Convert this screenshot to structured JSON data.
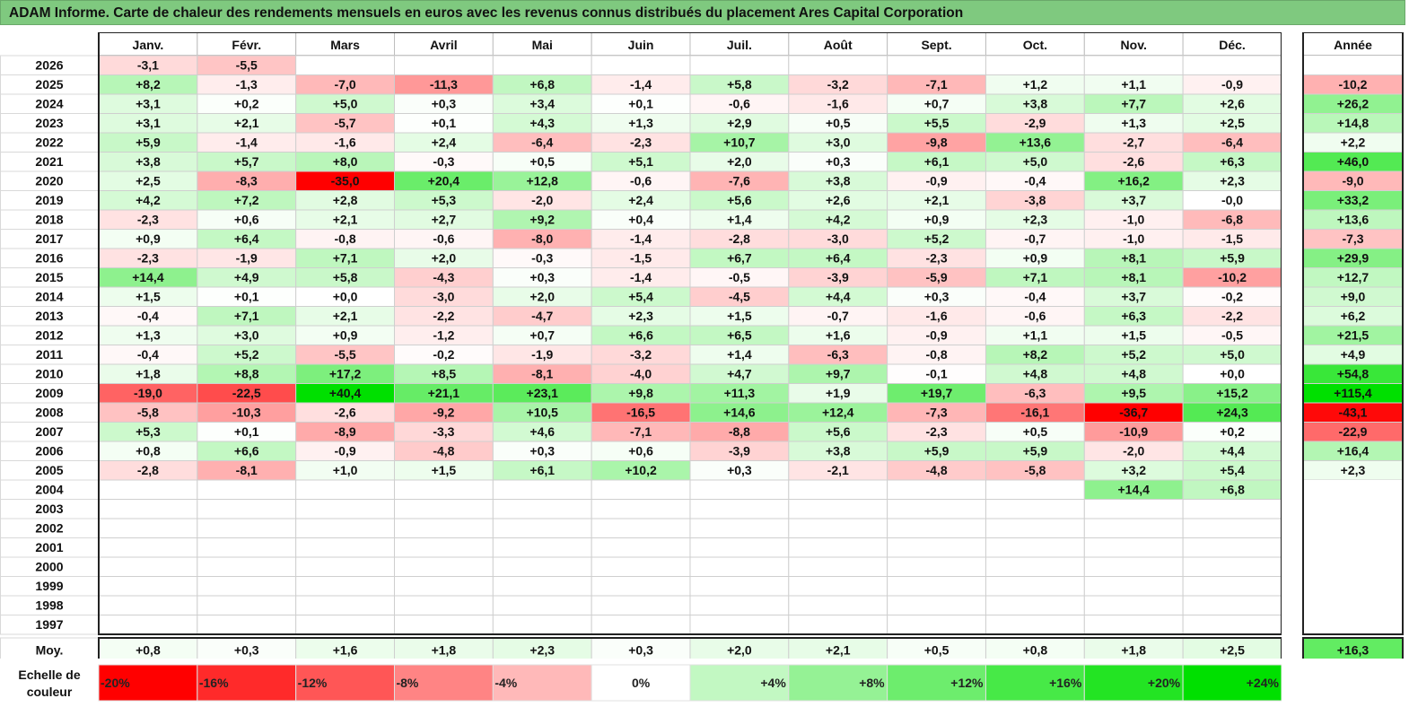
{
  "title": "ADAM Informe. Carte de chaleur des rendements mensuels en euros avec les revenus connus distribués du placement Ares Capital Corporation",
  "colors": {
    "title_bg": "#7fc97f",
    "max_red": "#ff0000",
    "max_green": "#00e000",
    "neutral": "#ffffff"
  },
  "chart_data": {
    "type": "heatmap",
    "columns": [
      "Janv.",
      "Févr.",
      "Mars",
      "Avril",
      "Mai",
      "Juin",
      "Juil.",
      "Août",
      "Sept.",
      "Oct.",
      "Nov.",
      "Déc."
    ],
    "annual_header": "Année",
    "rows": [
      {
        "year": "2026",
        "months": [
          "-3,1",
          "-5,5",
          "",
          "",
          "",
          "",
          "",
          "",
          "",
          "",
          "",
          ""
        ],
        "annual": ""
      },
      {
        "year": "2025",
        "months": [
          "+8,2",
          "-1,3",
          "-7,0",
          "-11,3",
          "+6,8",
          "-1,4",
          "+5,8",
          "-3,2",
          "-7,1",
          "+1,2",
          "+1,1",
          "-0,9"
        ],
        "annual": "-10,2"
      },
      {
        "year": "2024",
        "months": [
          "+3,1",
          "+0,2",
          "+5,0",
          "+0,3",
          "+3,4",
          "+0,1",
          "-0,6",
          "-1,6",
          "+0,7",
          "+3,8",
          "+7,7",
          "+2,6"
        ],
        "annual": "+26,2"
      },
      {
        "year": "2023",
        "months": [
          "+3,1",
          "+2,1",
          "-5,7",
          "+0,1",
          "+4,3",
          "+1,3",
          "+2,9",
          "+0,5",
          "+5,5",
          "-2,9",
          "+1,3",
          "+2,5"
        ],
        "annual": "+14,8"
      },
      {
        "year": "2022",
        "months": [
          "+5,9",
          "-1,4",
          "-1,6",
          "+2,4",
          "-6,4",
          "-2,3",
          "+10,7",
          "+3,0",
          "-9,8",
          "+13,6",
          "-2,7",
          "-6,4"
        ],
        "annual": "+2,2"
      },
      {
        "year": "2021",
        "months": [
          "+3,8",
          "+5,7",
          "+8,0",
          "-0,3",
          "+0,5",
          "+5,1",
          "+2,0",
          "+0,3",
          "+6,1",
          "+5,0",
          "-2,6",
          "+6,3"
        ],
        "annual": "+46,0"
      },
      {
        "year": "2020",
        "months": [
          "+2,5",
          "-8,3",
          "-35,0",
          "+20,4",
          "+12,8",
          "-0,6",
          "-7,6",
          "+3,8",
          "-0,9",
          "-0,4",
          "+16,2",
          "+2,3"
        ],
        "annual": "-9,0"
      },
      {
        "year": "2019",
        "months": [
          "+4,2",
          "+7,2",
          "+2,8",
          "+5,3",
          "-2,0",
          "+2,4",
          "+5,6",
          "+2,6",
          "+2,1",
          "-3,8",
          "+3,7",
          "-0,0"
        ],
        "annual": "+33,2"
      },
      {
        "year": "2018",
        "months": [
          "-2,3",
          "+0,6",
          "+2,1",
          "+2,7",
          "+9,2",
          "+0,4",
          "+1,4",
          "+4,2",
          "+0,9",
          "+2,3",
          "-1,0",
          "-6,8"
        ],
        "annual": "+13,6"
      },
      {
        "year": "2017",
        "months": [
          "+0,9",
          "+6,4",
          "-0,8",
          "-0,6",
          "-8,0",
          "-1,4",
          "-2,8",
          "-3,0",
          "+5,2",
          "-0,7",
          "-1,0",
          "-1,5"
        ],
        "annual": "-7,3"
      },
      {
        "year": "2016",
        "months": [
          "-2,3",
          "-1,9",
          "+7,1",
          "+2,0",
          "-0,3",
          "-1,5",
          "+6,7",
          "+6,4",
          "-2,3",
          "+0,9",
          "+8,1",
          "+5,9"
        ],
        "annual": "+29,9"
      },
      {
        "year": "2015",
        "months": [
          "+14,4",
          "+4,9",
          "+5,8",
          "-4,3",
          "+0,3",
          "-1,4",
          "-0,5",
          "-3,9",
          "-5,9",
          "+7,1",
          "+8,1",
          "-10,2"
        ],
        "annual": "+12,7"
      },
      {
        "year": "2014",
        "months": [
          "+1,5",
          "+0,1",
          "+0,0",
          "-3,0",
          "+2,0",
          "+5,4",
          "-4,5",
          "+4,4",
          "+0,3",
          "-0,4",
          "+3,7",
          "-0,2"
        ],
        "annual": "+9,0"
      },
      {
        "year": "2013",
        "months": [
          "-0,4",
          "+7,1",
          "+2,1",
          "-2,2",
          "-4,7",
          "+2,3",
          "+1,5",
          "-0,7",
          "-1,6",
          "-0,6",
          "+6,3",
          "-2,2"
        ],
        "annual": "+6,2"
      },
      {
        "year": "2012",
        "months": [
          "+1,3",
          "+3,0",
          "+0,9",
          "-1,2",
          "+0,7",
          "+6,6",
          "+6,5",
          "+1,6",
          "-0,9",
          "+1,1",
          "+1,5",
          "-0,5"
        ],
        "annual": "+21,5"
      },
      {
        "year": "2011",
        "months": [
          "-0,4",
          "+5,2",
          "-5,5",
          "-0,2",
          "-1,9",
          "-3,2",
          "+1,4",
          "-6,3",
          "-0,8",
          "+8,2",
          "+5,2",
          "+5,0"
        ],
        "annual": "+4,9"
      },
      {
        "year": "2010",
        "months": [
          "+1,8",
          "+8,8",
          "+17,2",
          "+8,5",
          "-8,1",
          "-4,0",
          "+4,7",
          "+9,7",
          "-0,1",
          "+4,8",
          "+4,8",
          "+0,0"
        ],
        "annual": "+54,8"
      },
      {
        "year": "2009",
        "months": [
          "-19,0",
          "-22,5",
          "+40,4",
          "+21,1",
          "+23,1",
          "+9,8",
          "+11,3",
          "+1,9",
          "+19,7",
          "-6,3",
          "+9,5",
          "+15,2"
        ],
        "annual": "+115,4"
      },
      {
        "year": "2008",
        "months": [
          "-5,8",
          "-10,3",
          "-2,6",
          "-9,2",
          "+10,5",
          "-16,5",
          "+14,6",
          "+12,4",
          "-7,3",
          "-16,1",
          "-36,7",
          "+24,3"
        ],
        "annual": "-43,1"
      },
      {
        "year": "2007",
        "months": [
          "+5,3",
          "+0,1",
          "-8,9",
          "-3,3",
          "+4,6",
          "-7,1",
          "-8,8",
          "+5,6",
          "-2,3",
          "+0,5",
          "-10,9",
          "+0,2"
        ],
        "annual": "-22,9"
      },
      {
        "year": "2006",
        "months": [
          "+0,8",
          "+6,6",
          "-0,9",
          "-4,8",
          "+0,3",
          "+0,6",
          "-3,9",
          "+3,8",
          "+5,9",
          "+5,9",
          "-2,0",
          "+4,4"
        ],
        "annual": "+16,4"
      },
      {
        "year": "2005",
        "months": [
          "-2,8",
          "-8,1",
          "+1,0",
          "+1,5",
          "+6,1",
          "+10,2",
          "+0,3",
          "-2,1",
          "-4,8",
          "-5,8",
          "+3,2",
          "+5,4"
        ],
        "annual": "+2,3"
      },
      {
        "year": "2004",
        "months": [
          "",
          "",
          "",
          "",
          "",
          "",
          "",
          "",
          "",
          "",
          "+14,4",
          "+6,8"
        ],
        "annual": ""
      },
      {
        "year": "2003",
        "months": [
          "",
          "",
          "",
          "",
          "",
          "",
          "",
          "",
          "",
          "",
          "",
          ""
        ],
        "annual": ""
      },
      {
        "year": "2002",
        "months": [
          "",
          "",
          "",
          "",
          "",
          "",
          "",
          "",
          "",
          "",
          "",
          ""
        ],
        "annual": ""
      },
      {
        "year": "2001",
        "months": [
          "",
          "",
          "",
          "",
          "",
          "",
          "",
          "",
          "",
          "",
          "",
          ""
        ],
        "annual": ""
      },
      {
        "year": "2000",
        "months": [
          "",
          "",
          "",
          "",
          "",
          "",
          "",
          "",
          "",
          "",
          "",
          ""
        ],
        "annual": ""
      },
      {
        "year": "1999",
        "months": [
          "",
          "",
          "",
          "",
          "",
          "",
          "",
          "",
          "",
          "",
          "",
          ""
        ],
        "annual": ""
      },
      {
        "year": "1998",
        "months": [
          "",
          "",
          "",
          "",
          "",
          "",
          "",
          "",
          "",
          "",
          "",
          ""
        ],
        "annual": ""
      },
      {
        "year": "1997",
        "months": [
          "",
          "",
          "",
          "",
          "",
          "",
          "",
          "",
          "",
          "",
          "",
          ""
        ],
        "annual": ""
      }
    ],
    "average": {
      "label": "Moy.",
      "months": [
        "+0,8",
        "+0,3",
        "+1,6",
        "+1,8",
        "+2,3",
        "+0,3",
        "+2,0",
        "+2,1",
        "+0,5",
        "+0,8",
        "+1,8",
        "+2,5"
      ],
      "annual": "+16,3"
    },
    "scale": {
      "label": [
        "Echelle de",
        "couleur"
      ],
      "stops": [
        "-20%",
        "-16%",
        "-12%",
        "-8%",
        "-4%",
        "0%",
        "+4%",
        "+8%",
        "+12%",
        "+16%",
        "+20%",
        "+24%"
      ],
      "values": [
        -20,
        -16,
        -12,
        -8,
        -4,
        0,
        4,
        8,
        12,
        16,
        20,
        24
      ]
    }
  }
}
